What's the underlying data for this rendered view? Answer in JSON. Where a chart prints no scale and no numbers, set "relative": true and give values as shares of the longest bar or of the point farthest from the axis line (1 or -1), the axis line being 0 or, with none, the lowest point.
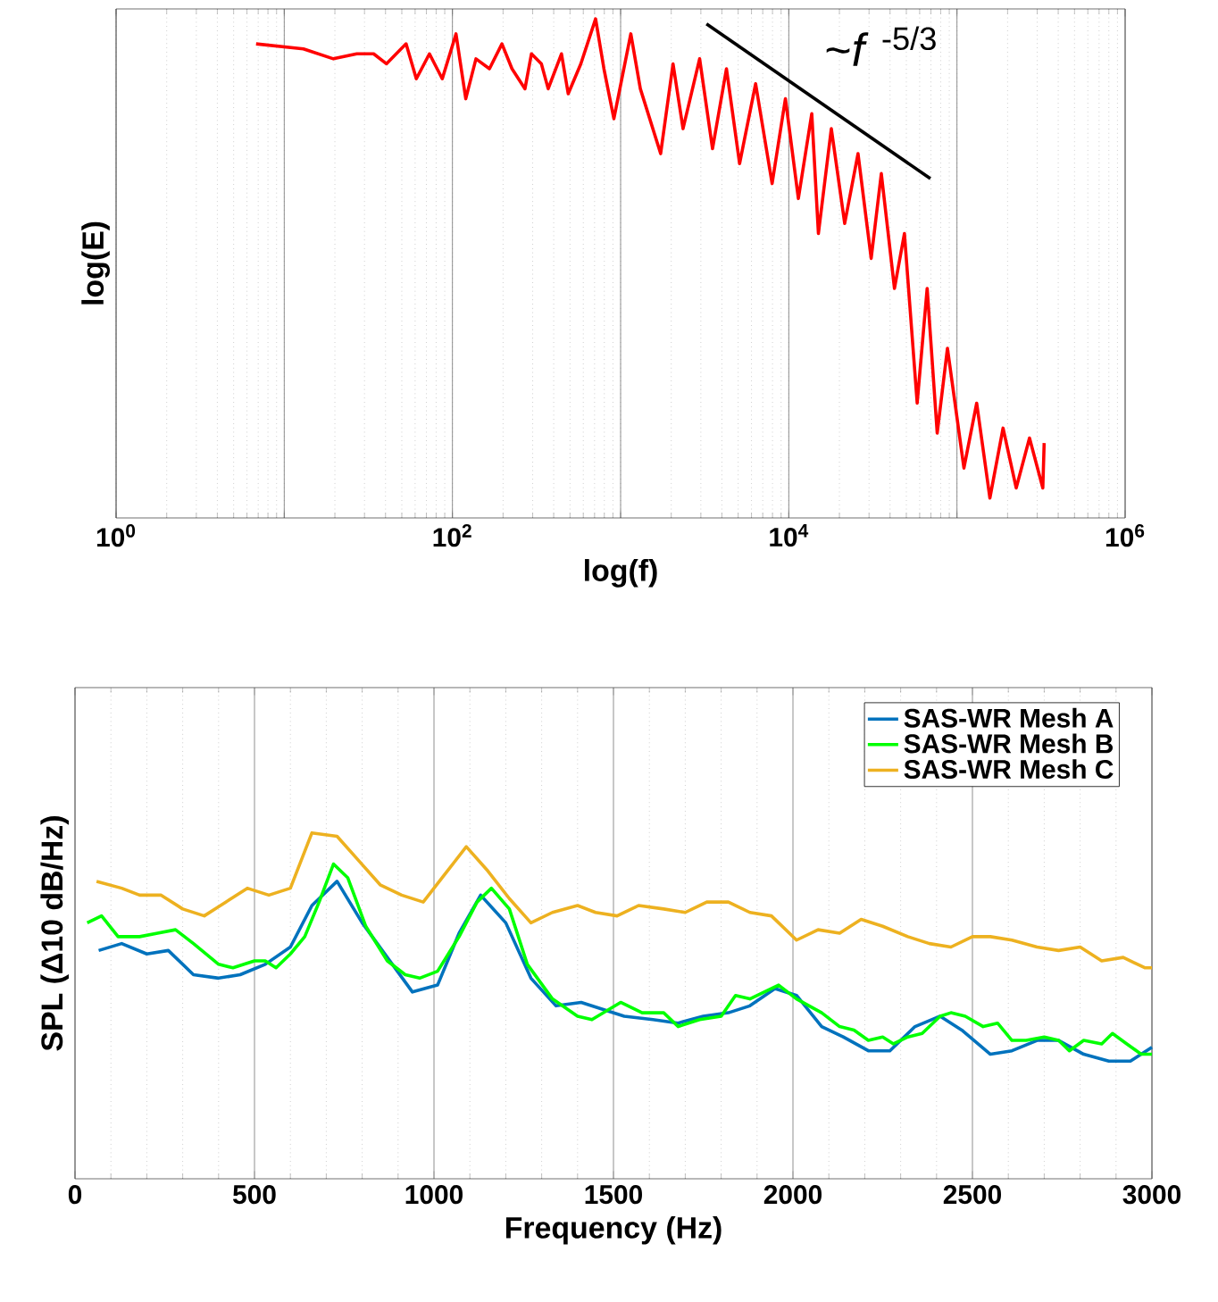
{
  "chart_data": [
    {
      "type": "line",
      "xlabel": "log(f)",
      "ylabel": "log(E)",
      "log": "x",
      "relative": true,
      "grid": "x",
      "marker": "none",
      "line_style": "solid",
      "xlim": [
        1,
        1000000
      ],
      "xticks": [
        {
          "value": 1,
          "label": "10$^{0}$"
        },
        {
          "value": 10,
          "label": null
        },
        {
          "value": 100,
          "label": "10$^{2}$"
        },
        {
          "value": 1000,
          "label": null
        },
        {
          "value": 10000,
          "label": "10$^{4}$"
        },
        {
          "value": 100000,
          "label": null
        },
        {
          "value": 1000000,
          "label": "10$^{6}$"
        }
      ],
      "annotations": [
        "~*f* $^{-5/3}$"
      ],
      "series": [
        {
          "color": "#ff0000",
          "x": [
            6.8,
            13,
            19.6,
            27,
            34,
            40.5,
            53,
            61,
            73,
            87,
            105,
            120,
            138,
            166,
            197,
            226,
            270,
            295,
            338,
            371,
            445,
            488,
            580,
            710,
            796,
            912,
            1150,
            1310,
            1730,
            2050,
            2350,
            2950,
            3520,
            4260,
            5100,
            6350,
            7960,
            9550,
            11400,
            13700,
            15000,
            17900,
            21500,
            25800,
            30900,
            35500,
            42500,
            48700,
            58000,
            66500,
            76300,
            87800,
            110000,
            131000,
            157000,
            188000,
            225000,
            270000,
            324000,
            330000
          ],
          "values": [
            0.95,
            0.94,
            0.92,
            0.93,
            0.93,
            0.91,
            0.95,
            0.88,
            0.93,
            0.88,
            0.97,
            0.84,
            0.92,
            0.9,
            0.95,
            0.9,
            0.86,
            0.93,
            0.91,
            0.86,
            0.93,
            0.85,
            0.91,
            1.0,
            0.9,
            0.8,
            0.97,
            0.86,
            0.73,
            0.91,
            0.78,
            0.92,
            0.74,
            0.9,
            0.71,
            0.87,
            0.67,
            0.84,
            0.64,
            0.81,
            0.57,
            0.78,
            0.59,
            0.73,
            0.52,
            0.69,
            0.46,
            0.57,
            0.23,
            0.46,
            0.17,
            0.34,
            0.1,
            0.23,
            0.04,
            0.18,
            0.06,
            0.16,
            0.06,
            0.15
          ]
        },
        {
          "color": "#000000",
          "x": [
            3240,
            69500
          ],
          "values": [
            0.99,
            0.68
          ]
        }
      ]
    },
    {
      "type": "line",
      "xlabel": "Frequency (Hz)",
      "ylabel": "SPL (Δ10 dB/Hz)",
      "relative": true,
      "grid": "x",
      "legend": "top right",
      "marker": "none",
      "line_style": "solid",
      "xlim": [
        0,
        3000
      ],
      "xticks": [
        0,
        500,
        1000,
        1500,
        2000,
        2500,
        3000
      ],
      "series": [
        {
          "name": "SAS-WR Mesh A",
          "color": "#0072bd",
          "x": [
            66,
            130,
            200,
            260,
            330,
            400,
            460,
            530,
            600,
            660,
            730,
            800,
            870,
            940,
            1010,
            1070,
            1130,
            1200,
            1270,
            1340,
            1410,
            1470,
            1530,
            1610,
            1680,
            1750,
            1820,
            1880,
            1950,
            2010,
            2080,
            2140,
            2210,
            2270,
            2340,
            2410,
            2470,
            2550,
            2610,
            2680,
            2740,
            2810,
            2880,
            2940,
            3000
          ],
          "values": [
            0.66,
            0.68,
            0.65,
            0.66,
            0.59,
            0.58,
            0.59,
            0.62,
            0.67,
            0.79,
            0.86,
            0.74,
            0.64,
            0.54,
            0.56,
            0.71,
            0.82,
            0.74,
            0.58,
            0.5,
            0.51,
            0.49,
            0.47,
            0.46,
            0.45,
            0.47,
            0.48,
            0.5,
            0.55,
            0.53,
            0.44,
            0.41,
            0.37,
            0.37,
            0.44,
            0.47,
            0.43,
            0.36,
            0.37,
            0.4,
            0.4,
            0.36,
            0.34,
            0.34,
            0.38
          ]
        },
        {
          "name": "SAS-WR Mesh B",
          "color": "#00ff00",
          "x": [
            34,
            74,
            120,
            180,
            230,
            280,
            330,
            400,
            440,
            500,
            530,
            560,
            600,
            640,
            680,
            720,
            760,
            810,
            870,
            920,
            960,
            1010,
            1070,
            1120,
            1160,
            1210,
            1260,
            1330,
            1400,
            1440,
            1520,
            1580,
            1640,
            1680,
            1740,
            1800,
            1840,
            1880,
            1960,
            2010,
            2080,
            2130,
            2170,
            2210,
            2250,
            2280,
            2320,
            2360,
            2410,
            2440,
            2480,
            2530,
            2570,
            2610,
            2650,
            2700,
            2740,
            2770,
            2810,
            2860,
            2890,
            2930,
            2970,
            3000
          ],
          "values": [
            0.74,
            0.76,
            0.7,
            0.7,
            0.71,
            0.72,
            0.68,
            0.62,
            0.61,
            0.63,
            0.63,
            0.61,
            0.65,
            0.7,
            0.8,
            0.91,
            0.87,
            0.73,
            0.63,
            0.59,
            0.58,
            0.6,
            0.7,
            0.8,
            0.84,
            0.78,
            0.62,
            0.52,
            0.47,
            0.46,
            0.51,
            0.48,
            0.48,
            0.44,
            0.46,
            0.47,
            0.53,
            0.52,
            0.56,
            0.52,
            0.48,
            0.44,
            0.43,
            0.4,
            0.41,
            0.39,
            0.41,
            0.42,
            0.47,
            0.48,
            0.47,
            0.44,
            0.45,
            0.4,
            0.4,
            0.41,
            0.4,
            0.37,
            0.4,
            0.39,
            0.42,
            0.39,
            0.36,
            0.36
          ]
        },
        {
          "name": "SAS-WR Mesh C",
          "color": "#edb120",
          "x": [
            60,
            130,
            180,
            240,
            300,
            360,
            420,
            480,
            540,
            600,
            660,
            730,
            790,
            850,
            910,
            970,
            1030,
            1090,
            1150,
            1210,
            1270,
            1330,
            1400,
            1450,
            1510,
            1570,
            1640,
            1700,
            1760,
            1820,
            1880,
            1940,
            2010,
            2070,
            2130,
            2190,
            2250,
            2320,
            2380,
            2440,
            2500,
            2550,
            2610,
            2680,
            2740,
            2800,
            2860,
            2920,
            2980,
            3000
          ],
          "values": [
            0.86,
            0.84,
            0.82,
            0.82,
            0.78,
            0.76,
            0.8,
            0.84,
            0.82,
            0.84,
            1.0,
            0.99,
            0.92,
            0.85,
            0.82,
            0.8,
            0.88,
            0.96,
            0.89,
            0.81,
            0.74,
            0.77,
            0.79,
            0.77,
            0.76,
            0.79,
            0.78,
            0.77,
            0.8,
            0.8,
            0.77,
            0.76,
            0.69,
            0.72,
            0.71,
            0.75,
            0.73,
            0.7,
            0.68,
            0.67,
            0.7,
            0.7,
            0.69,
            0.67,
            0.66,
            0.67,
            0.63,
            0.64,
            0.61,
            0.61
          ]
        }
      ]
    }
  ]
}
